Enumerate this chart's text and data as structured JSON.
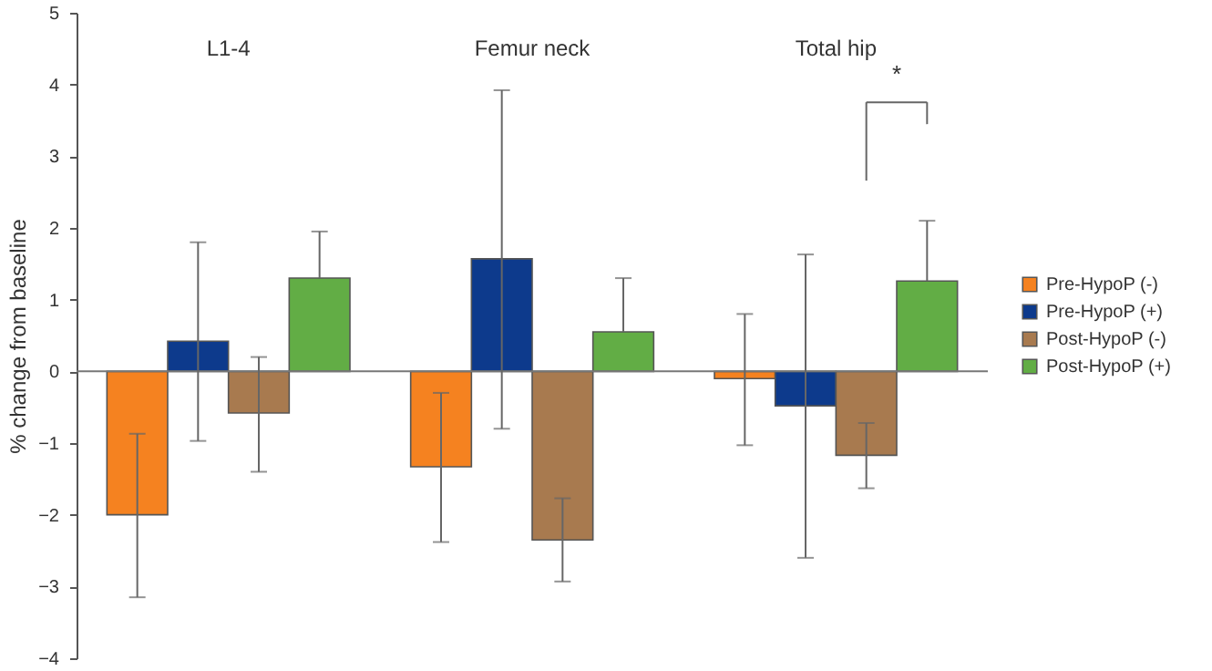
{
  "chart_data": {
    "type": "bar",
    "ylabel": "% change from baseline",
    "categories": [
      "L1-4",
      "Femur neck",
      "Total hip"
    ],
    "series": [
      {
        "name": "Pre-HypoP (-)",
        "color": "#f58220",
        "values": [
          -2.0,
          -1.33,
          -0.1
        ],
        "errors": [
          [
            -3.15,
            -0.87
          ],
          [
            -2.38,
            -0.3
          ],
          [
            -1.03,
            0.8
          ]
        ]
      },
      {
        "name": "Pre-HypoP (+)",
        "color": "#0d3a8c",
        "values": [
          0.42,
          1.57,
          -0.48
        ],
        "errors": [
          [
            -0.97,
            1.8
          ],
          [
            -0.8,
            3.92
          ],
          [
            -2.6,
            1.63
          ]
        ]
      },
      {
        "name": "Post-HypoP (-)",
        "color": "#a87a4f",
        "values": [
          -0.58,
          -2.35,
          -1.17
        ],
        "errors": [
          [
            -1.4,
            0.2
          ],
          [
            -2.93,
            -1.77
          ],
          [
            -1.63,
            -0.72
          ]
        ]
      },
      {
        "name": "Post-HypoP (+)",
        "color": "#62ad45",
        "values": [
          1.3,
          0.55,
          1.26
        ],
        "errors": [
          [
            1.3,
            1.95
          ],
          [
            0.55,
            1.3
          ],
          [
            1.26,
            2.1
          ]
        ]
      }
    ],
    "ylim": [
      -4,
      5
    ],
    "yticks": [
      -4,
      -3,
      -2,
      -1,
      0,
      1,
      2,
      3,
      4,
      5
    ],
    "ref_lines": [
      {
        "axis": "y",
        "value": 0,
        "label": null
      }
    ],
    "annotations": [
      "*"
    ],
    "grid": false,
    "legend": "right"
  }
}
